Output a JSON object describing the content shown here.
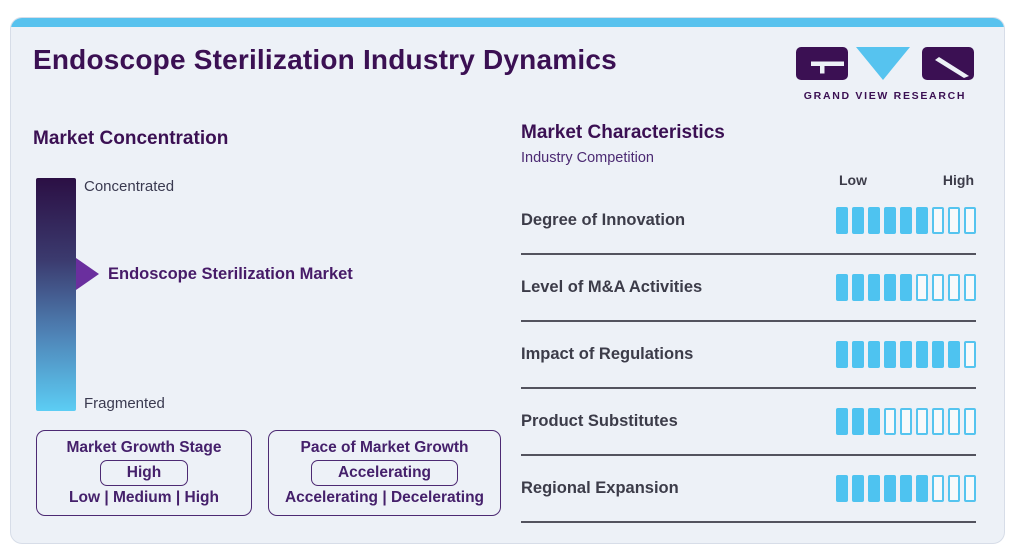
{
  "page": {
    "title": "Endoscope Sterilization Industry Dynamics"
  },
  "logo": {
    "brand": "GRAND VIEW RESEARCH"
  },
  "market_concentration": {
    "heading": "Market Concentration",
    "top_label": "Concentrated",
    "bottom_label": "Fragmented",
    "marker_label": "Endoscope Sterilization Market"
  },
  "growth_boxes": {
    "stage": {
      "title": "Market Growth Stage",
      "selected": "High",
      "options": "Low | Medium | High"
    },
    "pace": {
      "title": "Pace of Market Growth",
      "selected": "Accelerating",
      "options": "Accelerating | Decelerating"
    }
  },
  "market_characteristics": {
    "heading": "Market Characteristics",
    "subheading": "Industry Competition",
    "scale_low": "Low",
    "scale_high": "High"
  },
  "chart_data": {
    "type": "bar",
    "title": "Market Characteristics - Industry Competition",
    "categories": [
      "Degree of Innovation",
      "Level of M&A Activities",
      "Impact of Regulations",
      "Product Substitutes",
      "Regional Expansion"
    ],
    "values": [
      6,
      5,
      8,
      3,
      6
    ],
    "scale": {
      "segments": 9,
      "min_label": "Low",
      "max_label": "High"
    },
    "legend_position": "none",
    "grid": false
  },
  "colors": {
    "accent_blue": "#4ec3f0",
    "top_strip_blue": "#58c2ee",
    "brand_purple": "#3b1053",
    "arrow_purple": "#6a2f9e",
    "box_border_purple": "#4d2a73",
    "gradient_top": "#2b0f44",
    "gradient_bottom": "#5ccdf4",
    "card_background": "#edf1f7",
    "row_label_gray": "#3c3c49",
    "divider_gray": "#53535e"
  }
}
